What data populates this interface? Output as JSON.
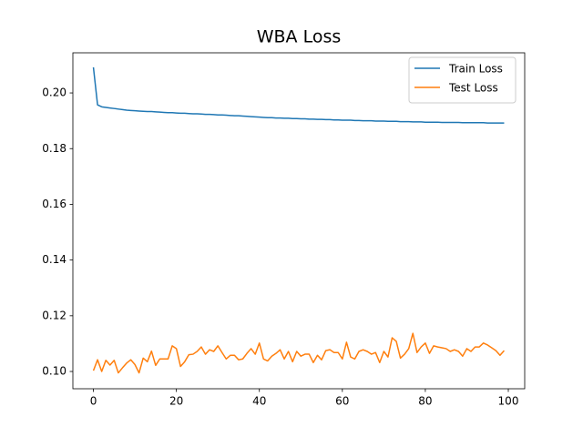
{
  "chart_data": {
    "type": "line",
    "title": "WBA Loss",
    "x": [
      0,
      1,
      2,
      3,
      4,
      5,
      6,
      7,
      8,
      9,
      10,
      11,
      12,
      13,
      14,
      15,
      16,
      17,
      18,
      19,
      20,
      21,
      22,
      23,
      24,
      25,
      26,
      27,
      28,
      29,
      30,
      31,
      32,
      33,
      34,
      35,
      36,
      37,
      38,
      39,
      40,
      41,
      42,
      43,
      44,
      45,
      46,
      47,
      48,
      49,
      50,
      51,
      52,
      53,
      54,
      55,
      56,
      57,
      58,
      59,
      60,
      61,
      62,
      63,
      64,
      65,
      66,
      67,
      68,
      69,
      70,
      71,
      72,
      73,
      74,
      75,
      76,
      77,
      78,
      79,
      80,
      81,
      82,
      83,
      84,
      85,
      86,
      87,
      88,
      89,
      90,
      91,
      92,
      93,
      94,
      95,
      96,
      97,
      98,
      99
    ],
    "series": [
      {
        "name": "Train Loss",
        "color": "#1f77b4",
        "values": [
          0.2092,
          0.1957,
          0.195,
          0.1948,
          0.1946,
          0.1944,
          0.1942,
          0.194,
          0.1938,
          0.1937,
          0.1936,
          0.1935,
          0.1934,
          0.1933,
          0.1933,
          0.1932,
          0.1931,
          0.193,
          0.1929,
          0.1929,
          0.1928,
          0.1927,
          0.1927,
          0.1926,
          0.1925,
          0.1925,
          0.1924,
          0.1923,
          0.1923,
          0.1922,
          0.1921,
          0.1921,
          0.192,
          0.1919,
          0.1918,
          0.1918,
          0.1917,
          0.1916,
          0.1915,
          0.1914,
          0.1913,
          0.1912,
          0.1911,
          0.1911,
          0.191,
          0.191,
          0.1909,
          0.1909,
          0.1908,
          0.1908,
          0.1907,
          0.1907,
          0.1906,
          0.1906,
          0.1905,
          0.1905,
          0.1904,
          0.1904,
          0.1903,
          0.1903,
          0.1902,
          0.1902,
          0.1902,
          0.1901,
          0.1901,
          0.19,
          0.19,
          0.19,
          0.1899,
          0.1899,
          0.1899,
          0.1898,
          0.1898,
          0.1898,
          0.1897,
          0.1897,
          0.1897,
          0.1896,
          0.1896,
          0.1896,
          0.1895,
          0.1895,
          0.1895,
          0.1895,
          0.1894,
          0.1894,
          0.1894,
          0.1894,
          0.1894,
          0.1893,
          0.1893,
          0.1893,
          0.1893,
          0.1893,
          0.1893,
          0.1892,
          0.1892,
          0.1892,
          0.1892,
          0.1892
        ]
      },
      {
        "name": "Test Loss",
        "color": "#ff7f0e",
        "values": [
          0.1003,
          0.1042,
          0.1,
          0.104,
          0.1023,
          0.104,
          0.0995,
          0.1013,
          0.103,
          0.1042,
          0.1025,
          0.0995,
          0.1048,
          0.1035,
          0.1073,
          0.1022,
          0.1045,
          0.1045,
          0.1045,
          0.1092,
          0.1082,
          0.1018,
          0.1035,
          0.106,
          0.1062,
          0.1072,
          0.1088,
          0.1062,
          0.1078,
          0.1072,
          0.1092,
          0.1068,
          0.1045,
          0.1058,
          0.1058,
          0.1042,
          0.1045,
          0.1065,
          0.1082,
          0.1062,
          0.1102,
          0.1045,
          0.1038,
          0.1055,
          0.1065,
          0.1078,
          0.1045,
          0.1072,
          0.1035,
          0.1072,
          0.1055,
          0.1062,
          0.1062,
          0.1032,
          0.1058,
          0.1042,
          0.1075,
          0.1078,
          0.1068,
          0.1068,
          0.1045,
          0.1105,
          0.1052,
          0.1045,
          0.1072,
          0.1078,
          0.1072,
          0.1062,
          0.1068,
          0.1032,
          0.1072,
          0.1052,
          0.1121,
          0.1108,
          0.1048,
          0.1062,
          0.1082,
          0.1137,
          0.1068,
          0.1088,
          0.1102,
          0.1065,
          0.1092,
          0.1088,
          0.1085,
          0.1082,
          0.1072,
          0.1078,
          0.1072,
          0.1055,
          0.1082,
          0.1072,
          0.1088,
          0.1088,
          0.1102,
          0.1095,
          0.1085,
          0.1075,
          0.1058,
          0.1075
        ]
      }
    ],
    "xlim": [
      -4.95,
      103.95
    ],
    "xticks": [
      0,
      20,
      40,
      60,
      80,
      100
    ],
    "ylim": [
      0.0938,
      0.2144
    ],
    "yticks": [
      {
        "value": 0.1,
        "label": "0.10"
      },
      0.12,
      0.14,
      0.16,
      0.18,
      {
        "value": 0.2,
        "label": "0.20"
      }
    ],
    "grid": false,
    "legend": "upper right"
  }
}
